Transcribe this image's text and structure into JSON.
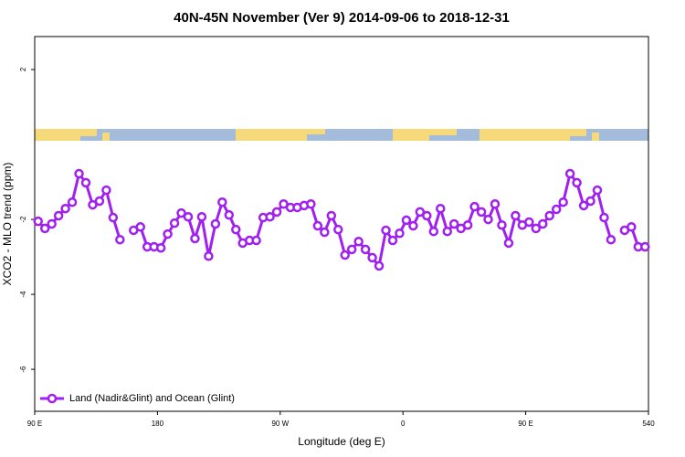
{
  "chart_data": {
    "type": "line",
    "title": "40N-45N November (Ver 9)   2014-09-06 to 2018-12-31",
    "x_label": "Longitude (deg E)",
    "y_label": "XCO2 - MLO trend (ppm)",
    "x": [
      92.5,
      97.5,
      102.5,
      107.5,
      112.5,
      117.5,
      122.5,
      127.5,
      132.5,
      137.5,
      142.5,
      147.5,
      152.5,
      157.5,
      162.5,
      167.5,
      172.5,
      177.5,
      182.5,
      187.5,
      192.5,
      197.5,
      202.5,
      207.5,
      212.5,
      217.5,
      222.5,
      227.5,
      232.5,
      237.5,
      242.5,
      247.5,
      252.5,
      257.5,
      262.5,
      267.5,
      272.5,
      277.5,
      282.5,
      287.5,
      292.5,
      297.5,
      302.5,
      307.5,
      312.5,
      317.5,
      322.5,
      327.5,
      332.5,
      337.5,
      342.5,
      347.5,
      352.5,
      357.5,
      362.5,
      367.5,
      372.5,
      377.5,
      382.5,
      387.5,
      392.5,
      397.5,
      402.5,
      407.5,
      412.5,
      417.5,
      422.5,
      427.5,
      432.5,
      437.5,
      442.5,
      447.5,
      452.5,
      457.5,
      462.5,
      467.5,
      472.5,
      477.5,
      482.5,
      487.5,
      492.5,
      497.5,
      502.5,
      507.5,
      512.5,
      517.5,
      522.5,
      527.5,
      532.5,
      537.5
    ],
    "series": [
      {
        "name": "Land (Nadir&Glint) and Ocean (Glint)",
        "color": "#a020f0",
        "values": [
          -2.05,
          -2.24,
          -2.12,
          -1.9,
          -1.71,
          -1.54,
          -0.78,
          -1.02,
          -1.61,
          -1.51,
          -1.22,
          -1.95,
          -2.54,
          null,
          -2.29,
          -2.2,
          -2.73,
          -2.73,
          -2.76,
          -2.39,
          -2.1,
          -1.83,
          -1.93,
          -2.51,
          -1.93,
          -2.98,
          -2.12,
          -1.54,
          -1.88,
          -2.27,
          -2.63,
          -2.56,
          -2.56,
          -1.95,
          -1.93,
          -1.8,
          -1.59,
          -1.68,
          -1.68,
          -1.63,
          -1.59,
          -2.17,
          -2.34,
          -1.9,
          -2.27,
          -2.95,
          -2.8,
          -2.59,
          -2.8,
          -3.02,
          -3.24,
          -2.29,
          -2.56,
          -2.37,
          -2.02,
          -2.17,
          -1.8,
          -1.9,
          -2.32,
          -1.71,
          -2.32,
          -2.12,
          -2.24,
          -2.15,
          -1.66,
          -1.8,
          -2.0,
          -1.59,
          -2.15,
          -2.63,
          -1.9,
          -2.15,
          -2.07,
          -2.24,
          -2.12,
          -1.9,
          -1.73,
          -1.54,
          -0.78,
          -1.02,
          -1.63,
          -1.51,
          -1.22,
          -1.95,
          -2.54,
          null,
          -2.29,
          -2.2,
          -2.73,
          -2.73
        ]
      }
    ],
    "xlim": [
      90,
      540
    ],
    "xticks": [
      {
        "value": 90,
        "label": "90 E"
      },
      180,
      {
        "value": 270,
        "label": "90 W"
      },
      {
        "value": 360,
        "label": "0"
      },
      {
        "value": 450,
        "label": "90 E"
      },
      540
    ],
    "ylim": [
      -7.12,
      2.88
    ],
    "yticks": [
      -6,
      -4,
      -2,
      2
    ],
    "legend": "bottom-left"
  }
}
